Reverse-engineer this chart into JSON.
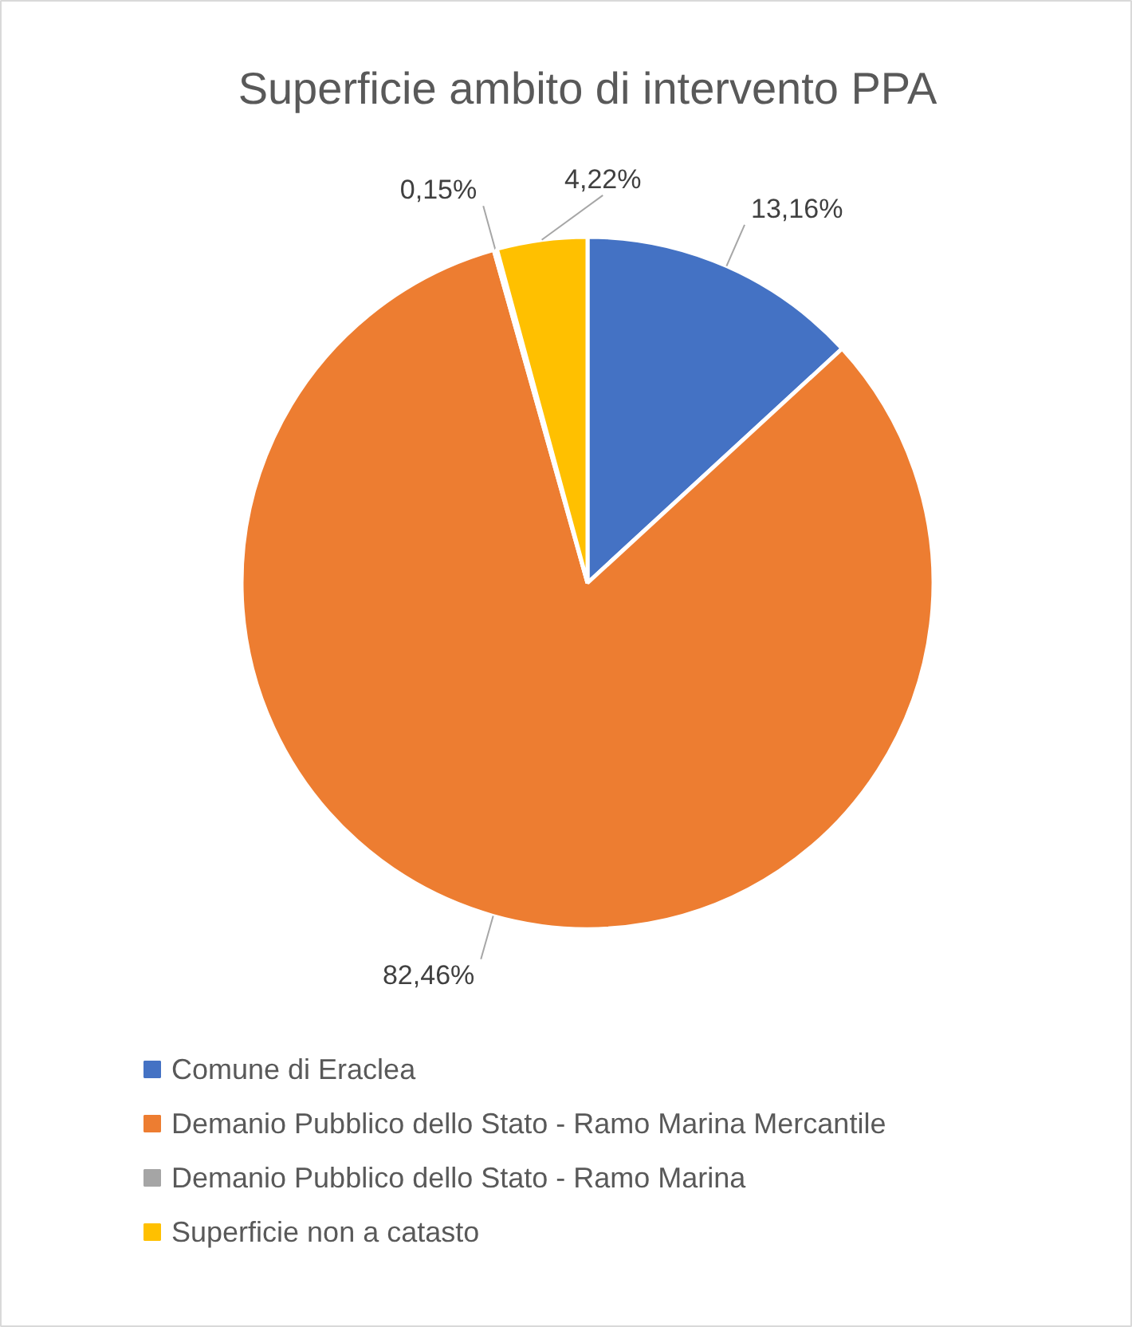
{
  "chart_data": {
    "type": "pie",
    "title": "Superficie ambito di intervento PPA",
    "categories": [
      "Comune di Eraclea",
      "Demanio Pubblico dello Stato - Ramo Marina Mercantile",
      "Demanio Pubblico dello Stato - Ramo Marina",
      "Superficie non a catasto"
    ],
    "values": [
      13.16,
      82.46,
      0.15,
      4.22
    ],
    "colors": [
      "#4472c4",
      "#ed7d31",
      "#a5a5a5",
      "#ffc000"
    ],
    "value_labels": [
      "13,16%",
      "82,46%",
      "0,15%",
      "4,22%"
    ],
    "legend": "bottom"
  }
}
